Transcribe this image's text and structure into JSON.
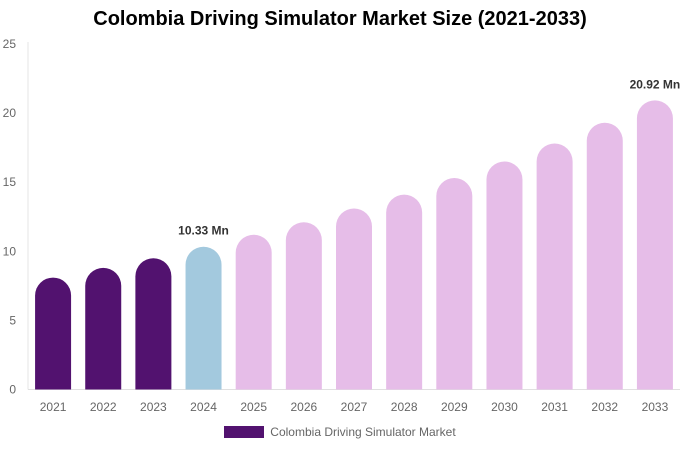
{
  "chart_data": {
    "type": "bar",
    "title": "Colombia Driving Simulator Market Size (2021-2033)",
    "categories": [
      "2021",
      "2022",
      "2023",
      "2024",
      "2025",
      "2026",
      "2027",
      "2028",
      "2029",
      "2030",
      "2031",
      "2032",
      "2033"
    ],
    "series": [
      {
        "name": "Colombia Driving Simulator Market",
        "values": [
          8.1,
          8.8,
          9.5,
          10.33,
          11.2,
          12.1,
          13.1,
          14.1,
          15.3,
          16.5,
          17.8,
          19.3,
          20.92
        ]
      }
    ],
    "data_labels": [
      {
        "category": "2024",
        "text": "10.33 Mn"
      },
      {
        "category": "2033",
        "text": "20.92 Mn"
      }
    ],
    "ylim": [
      0,
      25
    ],
    "yticks": [
      0,
      5,
      10,
      15,
      20,
      25
    ],
    "grid": false,
    "legend_position": "bottom",
    "colors": {
      "historical": "#52126f",
      "base_year": "#a3c9de",
      "forecast": "#e6bde8"
    }
  }
}
